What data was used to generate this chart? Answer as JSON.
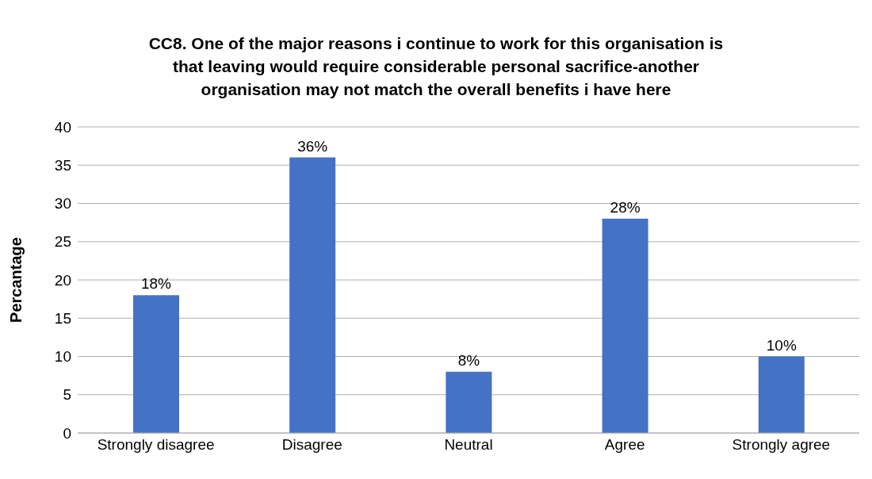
{
  "chart_data": {
    "type": "bar",
    "title": "CC8.   One of the major reasons i continue  to work for this organisation is that leaving would require considerable personal sacrifice-another organisation may not match the overall benefits i have here",
    "ylabel": "Percantage",
    "categories": [
      "Strongly disagree",
      "Disagree",
      "Neutral",
      "Agree",
      "Strongly agree"
    ],
    "values": [
      18,
      36,
      8,
      28,
      10
    ],
    "value_labels": [
      "18%",
      "36%",
      "8%",
      "28%",
      "10%"
    ],
    "color": "#4472c4",
    "ylim": [
      0,
      40
    ],
    "yticks": [
      0,
      5,
      10,
      15,
      20,
      25,
      30,
      35,
      40
    ],
    "grid": "y",
    "legend": false
  }
}
